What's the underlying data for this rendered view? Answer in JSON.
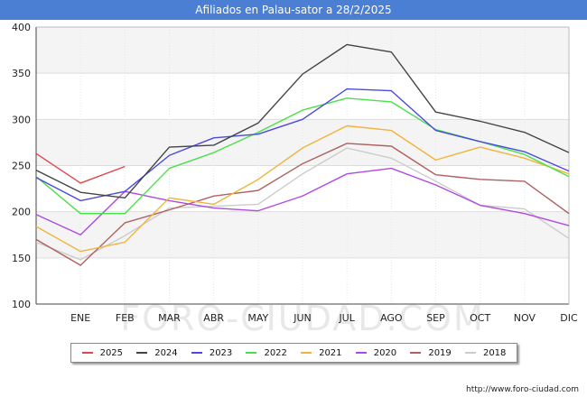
{
  "title": "Afiliados en Palau-sator a 28/2/2025",
  "source": "http://www.foro-ciudad.com",
  "watermark": "FORO-CIUDAD.COM",
  "chart_data": {
    "type": "line",
    "title": "Afiliados en Palau-sator a 28/2/2025",
    "xlabel": "",
    "ylabel": "",
    "categories": [
      "",
      "ENE",
      "FEB",
      "MAR",
      "ABR",
      "MAY",
      "JUN",
      "JUL",
      "AGO",
      "SEP",
      "OCT",
      "NOV",
      "DIC"
    ],
    "y_ticks": [
      100,
      150,
      200,
      250,
      300,
      350,
      400
    ],
    "ylim": [
      100,
      400
    ],
    "grid": true,
    "legend_position": "bottom",
    "series": [
      {
        "name": "2025",
        "color": "#e0474c",
        "values": [
          263,
          231,
          249,
          null,
          null,
          null,
          null,
          null,
          null,
          null,
          null,
          null,
          null
        ]
      },
      {
        "name": "2024",
        "color": "#444444",
        "values": [
          245,
          221,
          215,
          270,
          272,
          296,
          349,
          381,
          373,
          308,
          298,
          286,
          264
        ]
      },
      {
        "name": "2023",
        "color": "#4a4ae0",
        "values": [
          237,
          212,
          222,
          261,
          280,
          284,
          300,
          333,
          331,
          288,
          276,
          265,
          244
        ]
      },
      {
        "name": "2022",
        "color": "#4ae04a",
        "values": [
          238,
          198,
          198,
          247,
          264,
          286,
          310,
          323,
          319,
          289,
          276,
          262,
          238
        ]
      },
      {
        "name": "2021",
        "color": "#f0b43c",
        "values": [
          184,
          157,
          167,
          215,
          208,
          235,
          269,
          293,
          288,
          256,
          270,
          258,
          241
        ]
      },
      {
        "name": "2020",
        "color": "#b04ae0",
        "values": [
          197,
          175,
          222,
          212,
          204,
          201,
          217,
          241,
          247,
          229,
          207,
          198,
          185
        ]
      },
      {
        "name": "2019",
        "color": "#b06060",
        "values": [
          170,
          142,
          188,
          202,
          217,
          223,
          252,
          274,
          271,
          240,
          235,
          233,
          198
        ]
      },
      {
        "name": "2018",
        "color": "#cccccc",
        "values": [
          167,
          148,
          174,
          204,
          206,
          208,
          241,
          269,
          258,
          233,
          207,
          203,
          171
        ]
      }
    ]
  }
}
